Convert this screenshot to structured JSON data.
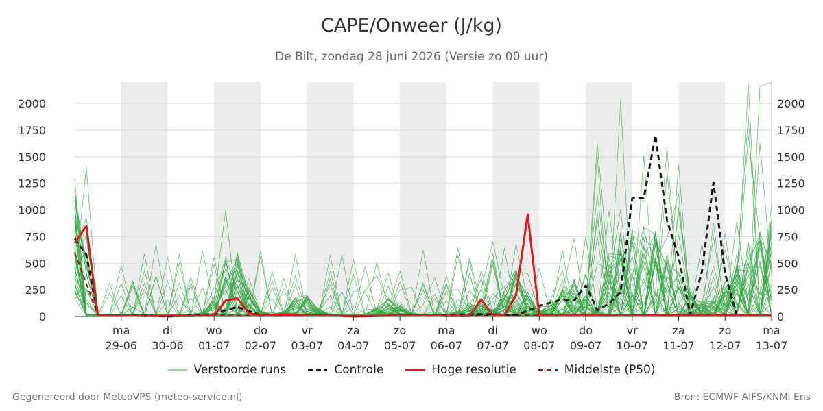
{
  "title": "CAPE/Onweer (J/kg)",
  "subtitle": "De Bilt, zondag 28 juni 2026 (Versie zo 00 uur)",
  "footer_left": "Gegenereerd door MeteoVPS (meteo-service.nl)",
  "footer_right": "Bron: ECMWF AIFS/KNMI Ens",
  "chart_data": {
    "type": "line",
    "x_unit": "days since 28-06 00:00",
    "xlim": [
      0,
      15
    ],
    "ylim": [
      0,
      2200
    ],
    "yticks": [
      0,
      250,
      500,
      750,
      1000,
      1250,
      1500,
      1750,
      2000
    ],
    "grid": true,
    "legend_position": "bottom",
    "day_ticks": [
      {
        "x": 1,
        "day": "ma",
        "date": "29-06"
      },
      {
        "x": 2,
        "day": "di",
        "date": "30-06"
      },
      {
        "x": 3,
        "day": "wo",
        "date": "01-07"
      },
      {
        "x": 4,
        "day": "do",
        "date": "02-07"
      },
      {
        "x": 5,
        "day": "vr",
        "date": "03-07"
      },
      {
        "x": 6,
        "day": "za",
        "date": "04-07"
      },
      {
        "x": 7,
        "day": "zo",
        "date": "05-07"
      },
      {
        "x": 8,
        "day": "ma",
        "date": "06-07"
      },
      {
        "x": 9,
        "day": "di",
        "date": "07-07"
      },
      {
        "x": 10,
        "day": "wo",
        "date": "08-07"
      },
      {
        "x": 11,
        "day": "do",
        "date": "09-07"
      },
      {
        "x": 12,
        "day": "vr",
        "date": "10-07"
      },
      {
        "x": 13,
        "day": "za",
        "date": "11-07"
      },
      {
        "x": 14,
        "day": "zo",
        "date": "12-07"
      },
      {
        "x": 15,
        "day": "ma",
        "date": "13-07"
      }
    ],
    "weekend_bands": [
      [
        1,
        2
      ],
      [
        3,
        4
      ],
      [
        5,
        6
      ],
      [
        7,
        8
      ],
      [
        9,
        10
      ],
      [
        11,
        12
      ],
      [
        13,
        14
      ]
    ],
    "legend": [
      "Verstoorde runs",
      "Controle",
      "Hoge resolutie",
      "Middelste (P50)"
    ],
    "colors": {
      "perturbed": "#3aa84a",
      "control": "#1a1a1a",
      "high_res": "#e0191e",
      "median": "#b01010",
      "band": "#ececec",
      "grid": "#dddddd"
    },
    "series": [
      {
        "name": "Controle",
        "style": "dashed",
        "x": [
          0,
          0.25,
          0.5,
          1,
          1.5,
          2,
          2.5,
          3,
          3.25,
          3.5,
          4,
          4.5,
          5,
          5.5,
          6,
          7,
          8,
          8.5,
          9,
          9.5,
          10,
          10.5,
          10.75,
          11,
          11.25,
          11.5,
          11.75,
          12,
          12.25,
          12.5,
          12.75,
          13,
          13.25,
          13.5,
          13.75,
          14,
          14.25,
          14.5,
          15
        ],
        "values": [
          730,
          580,
          10,
          10,
          10,
          0,
          10,
          20,
          60,
          90,
          10,
          20,
          10,
          10,
          0,
          10,
          10,
          20,
          20,
          10,
          100,
          160,
          150,
          290,
          60,
          120,
          230,
          1110,
          1110,
          1700,
          900,
          560,
          20,
          420,
          1260,
          400,
          10,
          10,
          10
        ]
      },
      {
        "name": "Hoge resolutie",
        "style": "solid",
        "x": [
          0,
          0.25,
          0.5,
          1,
          1.5,
          2,
          2.5,
          3,
          3.25,
          3.5,
          3.75,
          4,
          4.5,
          5,
          5.5,
          6,
          6.5,
          7,
          7.5,
          8,
          8.5,
          8.75,
          9,
          9.25,
          9.5,
          9.75,
          10,
          11,
          12,
          13,
          14,
          15
        ],
        "values": [
          690,
          850,
          10,
          10,
          5,
          5,
          5,
          10,
          150,
          170,
          30,
          10,
          20,
          10,
          10,
          0,
          5,
          10,
          10,
          5,
          5,
          160,
          10,
          10,
          200,
          960,
          10,
          10,
          10,
          10,
          10,
          10
        ]
      },
      {
        "name": "Middelste (P50)",
        "style": "dashed",
        "x": [
          0,
          0.5,
          1,
          3,
          4,
          5,
          6,
          7,
          8,
          9,
          10,
          11,
          12,
          13,
          14,
          15
        ],
        "values": [
          600,
          10,
          5,
          10,
          10,
          10,
          5,
          10,
          5,
          10,
          10,
          20,
          10,
          20,
          20,
          10
        ]
      }
    ]
  }
}
